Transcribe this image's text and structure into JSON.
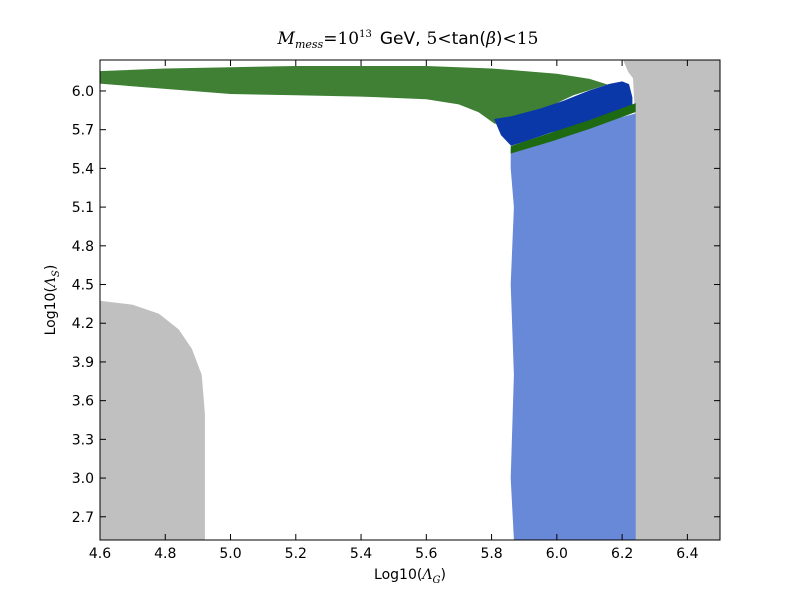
{
  "chart_data": {
    "type": "scatter",
    "title_parts": {
      "m": "M",
      "sub": "mess",
      "eq": "=10",
      "sup": "13",
      "gev": "GeV,",
      "five": "5",
      "lt1": "<",
      "tanb": "tan(",
      "beta": "β",
      "close": ")",
      "lt2": "<",
      "fifteen": "15"
    },
    "xlabel_parts": {
      "prefix": "Log10(",
      "sym": "Λ",
      "sub": "G",
      "suffix": ")"
    },
    "ylabel_parts": {
      "prefix": "Log10(",
      "sym": "Λ",
      "sub": "S",
      "suffix": ")"
    },
    "xlim": [
      4.6,
      6.5
    ],
    "ylim": [
      2.52,
      6.24
    ],
    "xticks": [
      "4.6",
      "4.8",
      "5.0",
      "5.2",
      "5.4",
      "5.6",
      "5.8",
      "6.0",
      "6.2",
      "6.4"
    ],
    "yticks": [
      "2.7",
      "3.0",
      "3.3",
      "3.6",
      "3.9",
      "4.2",
      "4.5",
      "4.8",
      "5.1",
      "5.4",
      "5.7",
      "6.0"
    ],
    "grid": false,
    "colors": {
      "excluded": "#c0c0c0",
      "green": "#3f8035",
      "dark_blue": "#0a38a8",
      "light_blue": "#6888d8",
      "dark_green": "#1e6a12"
    },
    "regions": [
      {
        "key": "excluded-right",
        "color": "excluded",
        "points": [
          [
            6.205,
            6.24
          ],
          [
            6.5,
            6.24
          ],
          [
            6.5,
            2.52
          ],
          [
            6.24,
            2.52
          ],
          [
            6.24,
            5.85
          ],
          [
            6.235,
            6.1
          ],
          [
            6.22,
            6.15
          ],
          [
            6.205,
            6.24
          ]
        ]
      },
      {
        "key": "excluded-left",
        "color": "excluded",
        "points": [
          [
            4.6,
            2.52
          ],
          [
            4.92,
            2.52
          ],
          [
            4.92,
            3.5
          ],
          [
            4.91,
            3.8
          ],
          [
            4.88,
            4.0
          ],
          [
            4.84,
            4.15
          ],
          [
            4.78,
            4.27
          ],
          [
            4.7,
            4.34
          ],
          [
            4.6,
            4.37
          ]
        ]
      },
      {
        "key": "green-band",
        "color": "green",
        "points": [
          [
            4.6,
            6.15
          ],
          [
            4.8,
            6.17
          ],
          [
            5.0,
            6.18
          ],
          [
            5.2,
            6.19
          ],
          [
            5.4,
            6.19
          ],
          [
            5.6,
            6.19
          ],
          [
            5.8,
            6.17
          ],
          [
            6.0,
            6.13
          ],
          [
            6.1,
            6.09
          ],
          [
            6.15,
            6.05
          ],
          [
            6.05,
            5.97
          ],
          [
            5.95,
            5.85
          ],
          [
            5.88,
            5.76
          ],
          [
            5.81,
            5.75
          ],
          [
            5.76,
            5.84
          ],
          [
            5.7,
            5.9
          ],
          [
            5.6,
            5.94
          ],
          [
            5.4,
            5.96
          ],
          [
            5.2,
            5.97
          ],
          [
            5.0,
            5.98
          ],
          [
            4.8,
            6.02
          ],
          [
            4.6,
            6.06
          ]
        ]
      },
      {
        "key": "dark-blue-band",
        "color": "dark_blue",
        "points": [
          [
            5.81,
            5.78
          ],
          [
            5.86,
            5.8
          ],
          [
            5.95,
            5.86
          ],
          [
            6.02,
            5.92
          ],
          [
            6.1,
            6.0
          ],
          [
            6.16,
            6.05
          ],
          [
            6.2,
            6.07
          ],
          [
            6.22,
            6.05
          ],
          [
            6.23,
            5.95
          ],
          [
            6.23,
            5.85
          ],
          [
            6.1,
            5.76
          ],
          [
            5.98,
            5.68
          ],
          [
            5.9,
            5.61
          ],
          [
            5.86,
            5.58
          ],
          [
            5.83,
            5.66
          ]
        ]
      },
      {
        "key": "light-blue-band",
        "color": "light_blue",
        "points": [
          [
            5.86,
            5.55
          ],
          [
            6.0,
            5.66
          ],
          [
            6.1,
            5.73
          ],
          [
            6.24,
            5.82
          ],
          [
            6.24,
            2.52
          ],
          [
            5.87,
            2.52
          ],
          [
            5.86,
            3.0
          ],
          [
            5.87,
            3.8
          ],
          [
            5.86,
            4.5
          ],
          [
            5.87,
            5.1
          ],
          [
            5.86,
            5.4
          ]
        ]
      },
      {
        "key": "dark-green-strip",
        "color": "dark_green",
        "points": [
          [
            5.86,
            5.52
          ],
          [
            5.98,
            5.61
          ],
          [
            6.1,
            5.71
          ],
          [
            6.24,
            5.84
          ],
          [
            6.24,
            5.9
          ],
          [
            6.1,
            5.77
          ],
          [
            5.98,
            5.67
          ],
          [
            5.86,
            5.57
          ]
        ]
      }
    ]
  }
}
